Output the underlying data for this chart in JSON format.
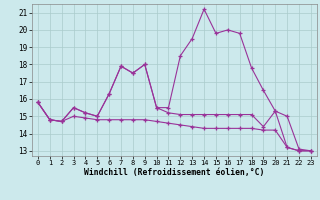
{
  "title": "",
  "xlabel": "Windchill (Refroidissement éolien,°C)",
  "background_color": "#cce9ec",
  "grid_color": "#aacccc",
  "line_color": "#993399",
  "x_ticks": [
    0,
    1,
    2,
    3,
    4,
    5,
    6,
    7,
    8,
    9,
    10,
    11,
    12,
    13,
    14,
    15,
    16,
    17,
    18,
    19,
    20,
    21,
    22,
    23
  ],
  "y_ticks": [
    13,
    14,
    15,
    16,
    17,
    18,
    19,
    20,
    21
  ],
  "ylim": [
    12.7,
    21.5
  ],
  "xlim": [
    -0.5,
    23.5
  ],
  "series1": [
    15.8,
    14.8,
    14.7,
    15.5,
    15.2,
    15.0,
    16.3,
    17.9,
    17.5,
    18.0,
    15.5,
    15.2,
    15.1,
    15.1,
    15.1,
    15.1,
    15.1,
    15.1,
    15.1,
    14.4,
    15.3,
    13.2,
    13.0,
    13.0
  ],
  "series2": [
    15.8,
    14.8,
    14.7,
    15.5,
    15.2,
    15.0,
    16.3,
    17.9,
    17.5,
    18.0,
    15.5,
    15.5,
    18.5,
    19.5,
    21.2,
    19.8,
    20.0,
    19.8,
    17.8,
    16.5,
    15.3,
    15.0,
    13.1,
    13.0
  ],
  "series3": [
    15.8,
    14.8,
    14.7,
    15.0,
    14.9,
    14.8,
    14.8,
    14.8,
    14.8,
    14.8,
    14.7,
    14.6,
    14.5,
    14.4,
    14.3,
    14.3,
    14.3,
    14.3,
    14.3,
    14.2,
    14.2,
    13.2,
    13.0,
    13.0
  ]
}
